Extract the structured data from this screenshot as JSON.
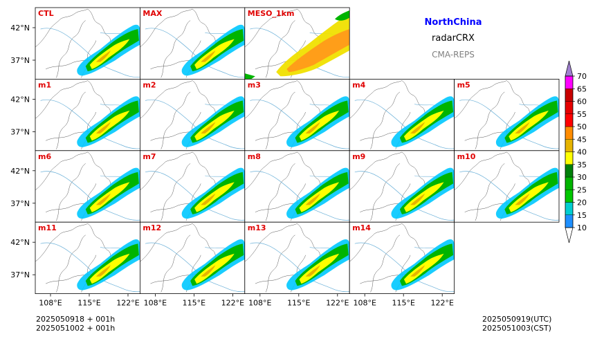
{
  "header": {
    "region": "NorthChina",
    "product": "radarCRX",
    "model": "CMA-REPS"
  },
  "panels": [
    {
      "label": "CTL",
      "variant": "normal"
    },
    {
      "label": "MAX",
      "variant": "normal"
    },
    {
      "label": "MESO_1km",
      "variant": "meso"
    },
    {
      "label": "m1",
      "variant": "normal"
    },
    {
      "label": "m2",
      "variant": "normal"
    },
    {
      "label": "m3",
      "variant": "normal"
    },
    {
      "label": "m4",
      "variant": "normal"
    },
    {
      "label": "m5",
      "variant": "normal"
    },
    {
      "label": "m6",
      "variant": "normal"
    },
    {
      "label": "m7",
      "variant": "normal"
    },
    {
      "label": "m8",
      "variant": "normal"
    },
    {
      "label": "m9",
      "variant": "normal"
    },
    {
      "label": "m10",
      "variant": "normal"
    },
    {
      "label": "m11",
      "variant": "normal"
    },
    {
      "label": "m12",
      "variant": "normal"
    },
    {
      "label": "m13",
      "variant": "normal"
    },
    {
      "label": "m14",
      "variant": "normal"
    }
  ],
  "axes": {
    "lat_ticks": [
      "42°N",
      "37°N"
    ],
    "lon_ticks": [
      "108°E",
      "115°E",
      "122°E"
    ]
  },
  "colorbar": {
    "levels": [
      "10",
      "15",
      "20",
      "25",
      "30",
      "35",
      "40",
      "45",
      "50",
      "55",
      "60",
      "65",
      "70"
    ],
    "colors": [
      "#1e90ff",
      "#00ced1",
      "#00c800",
      "#00b400",
      "#00800a",
      "#ffff00",
      "#e6b400",
      "#ff8c00",
      "#ff0000",
      "#e60000",
      "#c80000",
      "#ff00ff",
      "#9400d3",
      "#a080d0"
    ],
    "extend": "both"
  },
  "footer": {
    "init_time": "2025050918 + 001h",
    "init_time_cst": "2025051002 + 001h",
    "valid_utc": "2025050919(UTC)",
    "valid_cst": "2025051003(CST)"
  },
  "colors": {
    "panel_label": "#e00000",
    "coast": "#6ab0d8",
    "border": "#555555"
  }
}
